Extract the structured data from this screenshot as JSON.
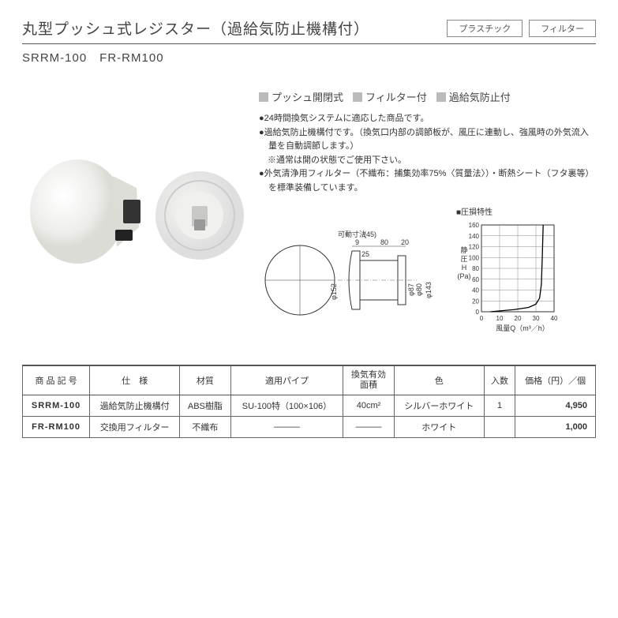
{
  "header": {
    "title": "丸型プッシュ式レジスター（過給気防止機構付）",
    "tags": [
      "プラスチック",
      "フィルター"
    ]
  },
  "subtitle": "SRRM-100　FR-RM100",
  "features": [
    "プッシュ開閉式",
    "フィルター付",
    "過給気防止付"
  ],
  "bullets": [
    "●24時間換気システムに適応した商品です。",
    "●過給気防止機構付です。（換気口内部の調節板が、風圧に連動し、強風時の外気流入量を自動調節します。）",
    "　※通常は開の状態でご使用下さい。",
    "●外気清浄用フィルター（不織布：捕集効率75%〈質量法〉）・断熱シート（フタ裏等）を標準装備しています。"
  ],
  "dimensions": {
    "label_movable": "可動寸法",
    "d9": "9",
    "d45": "(45)",
    "d80": "80",
    "d20": "20",
    "d25": "25",
    "phi152": "φ152",
    "phi87": "φ87",
    "phi80": "φ80",
    "phi143": "φ143"
  },
  "chart": {
    "title": "■圧損特性",
    "ylabel": "静圧H（Pa）",
    "xlabel": "風量Q（m³／h）",
    "yticks": [
      0,
      20,
      40,
      60,
      80,
      100,
      120,
      140,
      160
    ],
    "xticks": [
      0,
      10,
      20,
      30,
      40
    ],
    "xlim": [
      0,
      40
    ],
    "ylim": [
      0,
      160
    ],
    "grid_color": "#888",
    "line_color": "#000",
    "curve": [
      [
        5,
        0
      ],
      [
        18,
        4
      ],
      [
        26,
        8
      ],
      [
        30,
        14
      ],
      [
        32,
        25
      ],
      [
        33,
        50
      ],
      [
        33.5,
        100
      ],
      [
        34,
        160
      ]
    ],
    "width": 130,
    "height": 140
  },
  "table": {
    "headers": [
      "商 品 記 号",
      "仕　様",
      "材質",
      "適用パイプ",
      "換気有効\n面積",
      "色",
      "入数",
      "価格（円）／個"
    ],
    "rows": [
      {
        "code": "SRRM-100",
        "spec": "過給気防止機構付",
        "mat": "ABS樹脂",
        "pipe": "SU-100特（100×106）",
        "area": "40cm²",
        "color": "シルバーホワイト",
        "qty": "1",
        "price": "4,950"
      },
      {
        "code": "FR-RM100",
        "spec": "交換用フィルター",
        "mat": "不織布",
        "pipe": "———",
        "area": "———",
        "color": "ホワイト",
        "qty": "",
        "price": "1,000"
      }
    ]
  },
  "colors": {
    "product_body": "#eeeeec",
    "product_shadow": "#d5d5d0",
    "feature_mark": "#bbbbbb"
  }
}
